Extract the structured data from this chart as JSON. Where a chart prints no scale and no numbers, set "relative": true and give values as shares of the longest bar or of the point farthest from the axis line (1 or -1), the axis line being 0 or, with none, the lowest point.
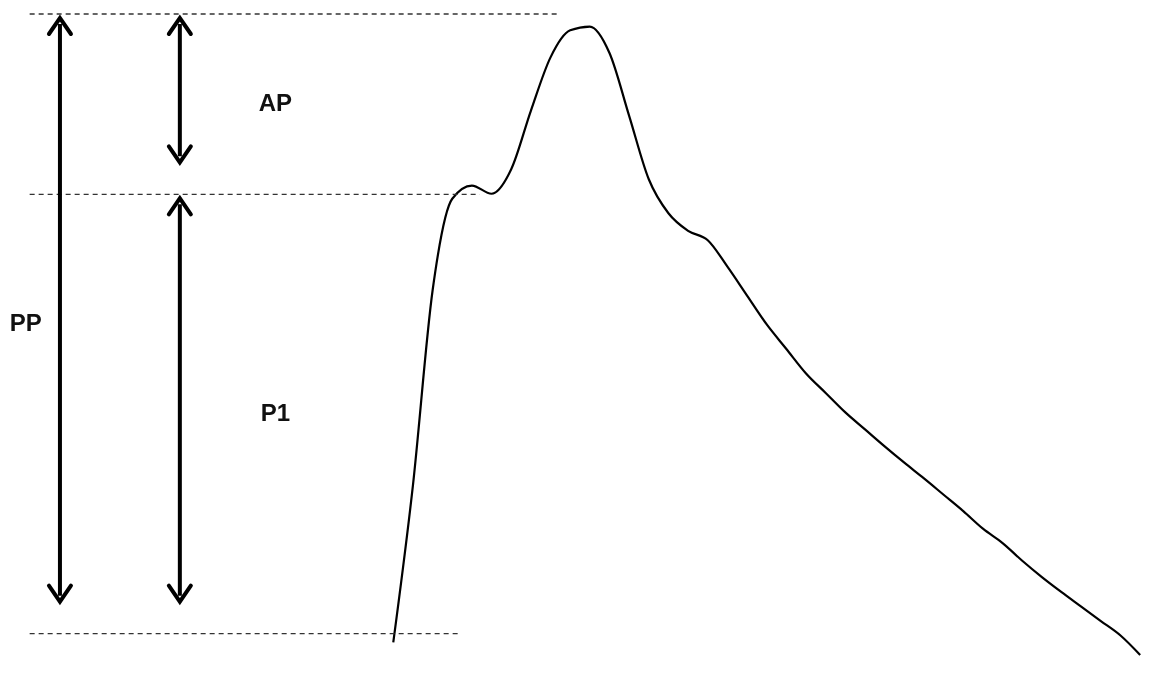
{
  "chart_data": {
    "type": "line",
    "relative": true,
    "color": "#000000",
    "categories": [
      null,
      null,
      null,
      null,
      null,
      null,
      null,
      null,
      null,
      null,
      null,
      null,
      null,
      null,
      null,
      null,
      null,
      null,
      null,
      null,
      null,
      null,
      null,
      null,
      null,
      null,
      null,
      null,
      null,
      null,
      null,
      null,
      null,
      null,
      null,
      null,
      null,
      null,
      null
    ],
    "values": [
      0.02,
      0.27,
      0.58,
      0.726,
      0.747,
      0.734,
      0.773,
      0.866,
      0.951,
      0.994,
      1,
      0.958,
      0.858,
      0.757,
      0.703,
      0.675,
      0.66,
      0.618,
      0.572,
      0.526,
      0.487,
      0.448,
      0.417,
      0.386,
      0.359,
      0.332,
      0.306,
      0.281,
      0.255,
      0.229,
      0.201,
      0.178,
      0.15,
      0.124,
      0.1,
      0.077,
      0.054,
      0.031,
      0
    ],
    "ref_lines": [
      {
        "axis": "y",
        "value": 1.02,
        "color": "#333333",
        "line_style": "dashed"
      },
      {
        "axis": "y",
        "value": 0.733,
        "color": "#333333",
        "line_style": "dashed"
      },
      {
        "axis": "y",
        "value": 0.034,
        "color": "#333333",
        "line_style": "dashed"
      }
    ],
    "annotations": [
      "AP",
      "PP",
      "P1"
    ]
  }
}
